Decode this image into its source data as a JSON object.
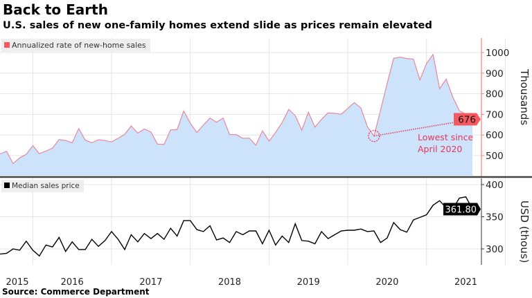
{
  "title": "Back to Earth",
  "subtitle": "U.S. sales of new one-family homes extend slide as prices remain elevated",
  "source": "Source: Commerce Department",
  "colors": {
    "sales_line": "#e8889a",
    "sales_fill": "#cce3fb",
    "accent": "#e8335a",
    "label_box": "#f5595f",
    "price_line": "#000000"
  },
  "chart_data": [
    {
      "type": "area",
      "legend": "Annualized rate of new-home sales",
      "ylabel": "Thousands",
      "ylim": [
        420,
        1060
      ],
      "yticks": [
        500,
        600,
        700,
        800,
        900,
        1000
      ],
      "x_start": "2015-05",
      "x_end": "2021-05",
      "values": [
        508,
        520,
        461,
        489,
        506,
        548,
        509,
        522,
        536,
        578,
        573,
        562,
        631,
        575,
        562,
        577,
        573,
        566,
        584,
        603,
        644,
        609,
        629,
        614,
        556,
        554,
        625,
        626,
        716,
        657,
        612,
        648,
        682,
        662,
        682,
        602,
        602,
        584,
        585,
        550,
        620,
        570,
        612,
        660,
        724,
        694,
        623,
        710,
        638,
        676,
        707,
        705,
        701,
        729,
        757,
        731,
        640,
        595,
        720,
        850,
        972,
        978,
        971,
        968,
        867,
        947,
        991,
        824,
        871,
        785,
        718,
        700,
        676
      ],
      "last_value_label": "676",
      "annotation": {
        "text_line1": "Lowest since",
        "text_line2": "April 2020",
        "from_index": 57,
        "to_index": 72
      },
      "grid": true,
      "legend_position": "top-left"
    },
    {
      "type": "line",
      "legend": "Median sales price",
      "ylabel": "USD (thous)",
      "ylim": [
        280,
        403
      ],
      "yticks": [
        300,
        350,
        400
      ],
      "x_start": "2015-05",
      "x_end": "2021-05",
      "values": [
        292,
        293,
        300,
        298,
        312,
        298,
        289,
        306,
        303,
        318,
        296,
        311,
        299,
        299,
        315,
        304,
        313,
        327,
        315,
        299,
        322,
        311,
        324,
        316,
        324,
        315,
        332,
        320,
        344,
        344,
        330,
        327,
        336,
        314,
        317,
        310,
        327,
        322,
        328,
        328,
        308,
        329,
        306,
        320,
        310,
        339,
        313,
        312,
        308,
        327,
        316,
        322,
        328,
        329,
        329,
        331,
        327,
        328,
        310,
        317,
        341,
        330,
        326,
        345,
        349,
        353,
        368,
        375,
        364,
        362,
        379,
        381,
        361.8
      ],
      "last_value_label": "361.80",
      "grid": true,
      "legend_position": "top-left"
    }
  ],
  "x_ticks": [
    "2015",
    "2016",
    "2017",
    "2018",
    "2019",
    "2020",
    "2021"
  ]
}
